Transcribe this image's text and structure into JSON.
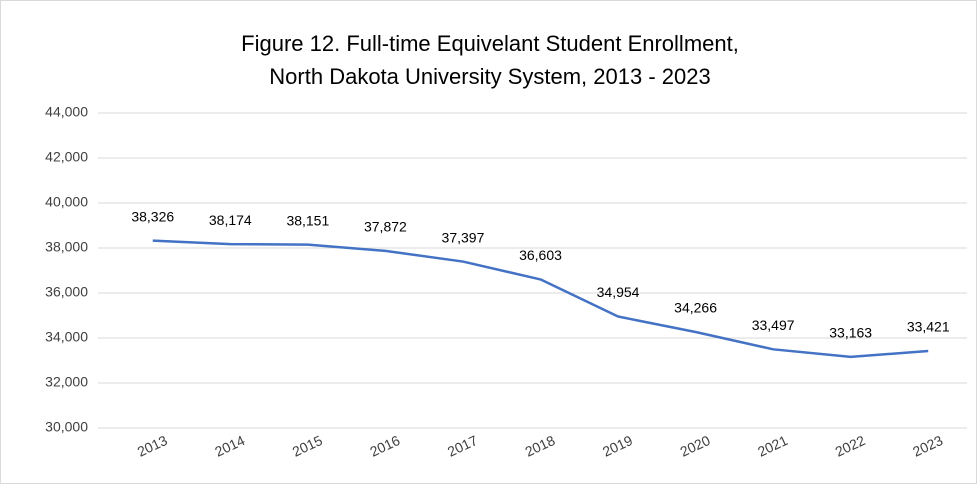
{
  "chart_data": {
    "type": "line",
    "title": [
      "Figure 12.  Full-time Equivelant Student Enrollment,",
      "North Dakota University System, 2013 - 2023"
    ],
    "categories": [
      "2013",
      "2014",
      "2015",
      "2016",
      "2017",
      "2018",
      "2019",
      "2020",
      "2021",
      "2022",
      "2023"
    ],
    "series": [
      {
        "color": "#4472c4",
        "values": [
          38326,
          38174,
          38151,
          37872,
          37397,
          36603,
          34954,
          34266,
          33497,
          33163,
          33421
        ],
        "value_labels": [
          "38,326",
          "38,174",
          "38,151",
          "37,872",
          "37,397",
          "36,603",
          "34,954",
          "34,266",
          "33,497",
          "33,163",
          "33,421"
        ]
      }
    ],
    "ylim": [
      30000,
      44000
    ],
    "yticks": [
      {
        "value": 30000,
        "label": "30,000"
      },
      {
        "value": 32000,
        "label": "32,000"
      },
      {
        "value": 34000,
        "label": "34,000"
      },
      {
        "value": 36000,
        "label": "36,000"
      },
      {
        "value": 38000,
        "label": "38,000"
      },
      {
        "value": 40000,
        "label": "40,000"
      },
      {
        "value": 42000,
        "label": "42,000"
      },
      {
        "value": 44000,
        "label": "44,000"
      }
    ],
    "grid": true
  }
}
